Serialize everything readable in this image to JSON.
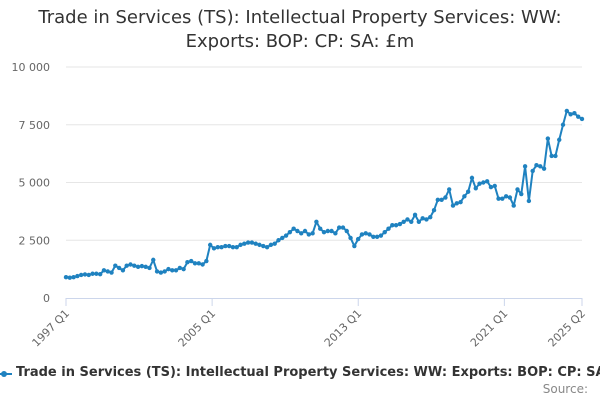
{
  "title_line1": "Trade in Services (TS): Intellectual Property Services: WW:",
  "title_line2": "Exports: BOP: CP: SA: £m",
  "legend_label": "Trade in Services (TS): Intellectual Property Services: WW: Exports: BOP: CP: SA: £m",
  "source_label": "Source:",
  "colors": {
    "series": "#1f82c0",
    "grid": "#e6e6e6",
    "axis": "#ccd6eb",
    "text": "#666666"
  },
  "chart_data": {
    "type": "line",
    "title": "Trade in Services (TS): Intellectual Property Services: WW: Exports: BOP: CP: SA: £m",
    "xlabel": "",
    "ylabel": "",
    "x_start": "1997 Q1",
    "x_end": "2025 Q2",
    "x_tick_labels": [
      "1997 Q1",
      "2005 Q1",
      "2013 Q1",
      "2021 Q1",
      "2025 Q2"
    ],
    "y_tick_labels": [
      "0",
      "2 500",
      "5 000",
      "7 500",
      "10 000"
    ],
    "ylim": [
      0,
      10000
    ],
    "grid": true,
    "legend_position": "bottom",
    "series": [
      {
        "name": "Trade in Services (TS): Intellectual Property Services: WW: Exports: BOP: CP: SA: £m",
        "values": [
          900,
          880,
          900,
          950,
          1000,
          1020,
          1000,
          1050,
          1050,
          1030,
          1200,
          1150,
          1100,
          1400,
          1300,
          1200,
          1400,
          1450,
          1400,
          1350,
          1380,
          1350,
          1300,
          1650,
          1150,
          1100,
          1150,
          1250,
          1200,
          1200,
          1300,
          1250,
          1550,
          1600,
          1500,
          1500,
          1450,
          1600,
          2300,
          2150,
          2200,
          2200,
          2250,
          2250,
          2200,
          2200,
          2300,
          2350,
          2400,
          2400,
          2350,
          2300,
          2250,
          2200,
          2300,
          2350,
          2500,
          2600,
          2700,
          2850,
          3000,
          2900,
          2800,
          2900,
          2750,
          2800,
          3300,
          3000,
          2850,
          2900,
          2900,
          2800,
          3050,
          3050,
          2900,
          2600,
          2250,
          2550,
          2750,
          2800,
          2750,
          2650,
          2650,
          2700,
          2850,
          3000,
          3150,
          3150,
          3200,
          3300,
          3400,
          3300,
          3600,
          3300,
          3450,
          3400,
          3500,
          3800,
          4250,
          4250,
          4350,
          4700,
          4000,
          4100,
          4150,
          4400,
          4600,
          5200,
          4750,
          4950,
          5000,
          5050,
          4800,
          4850,
          4300,
          4300,
          4400,
          4350,
          4000,
          4700,
          4500,
          5700,
          4200,
          5500,
          5750,
          5700,
          5600,
          6900,
          6150,
          6150,
          6850,
          7500,
          8100,
          7950,
          8000,
          7850,
          7750
        ]
      }
    ]
  }
}
